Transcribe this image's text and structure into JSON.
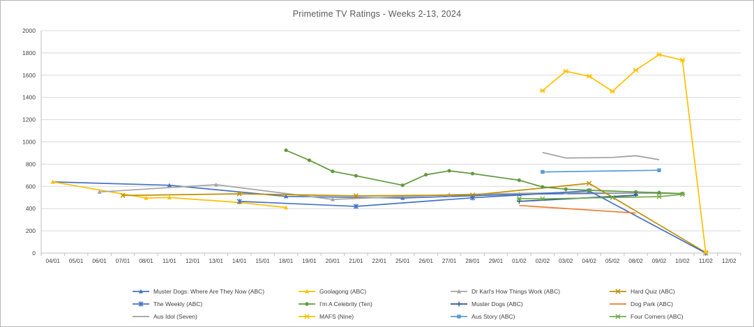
{
  "title": "Primetime TV Ratings - Weeks 2-13, 2024",
  "chart_data": {
    "type": "line",
    "title": "Primetime TV Ratings - Weeks 2-13, 2024",
    "xlabel": "",
    "ylabel": "",
    "ylim": [
      0,
      2000
    ],
    "y_tick_step": 200,
    "grid": true,
    "legend_position": "bottom",
    "axis_color": "#bfbfbf",
    "grid_color": "#d9d9d9",
    "tick_label_color": "#404040",
    "categories": [
      "04/01",
      "05/01",
      "06/01",
      "07/01",
      "08/01",
      "11/01",
      "12/01",
      "13/01",
      "14/01",
      "15/01",
      "18/01",
      "19/01",
      "20/01",
      "21/01",
      "22/01",
      "25/01",
      "26/01",
      "27/01",
      "28/01",
      "29/01",
      "01/02",
      "02/02",
      "03/02",
      "04/02",
      "05/02",
      "08/02",
      "09/02",
      "10/02",
      "11/02",
      "12/02"
    ],
    "series": [
      {
        "name": "Muster Dogs: Where Are They Now (ABC)",
        "color": "#4472c4",
        "marker": "triangle",
        "points": {
          "04/01": 640,
          "11/01": 610,
          "18/01": 510,
          "25/01": 495,
          "01/02": 530,
          "08/02": 540,
          "09/02": 545
        }
      },
      {
        "name": "Goolagong (ABC)",
        "color": "#ffc000",
        "marker": "triangle",
        "points": {
          "04/01": 640,
          "08/01": 495,
          "11/01": 500,
          "14/01": 455,
          "18/01": 410
        }
      },
      {
        "name": "Dr Karl's How Things Work (ABC)",
        "color": "#a5a5a5",
        "marker": "triangle",
        "points": {
          "06/01": 550,
          "13/01": 615,
          "20/01": 483,
          "27/01": 525,
          "03/02": 545,
          "10/02": 535
        }
      },
      {
        "name": "Hard Quiz (ABC)",
        "color": "#bf8f00",
        "marker": "x",
        "points": {
          "07/01": 518,
          "14/01": 533,
          "21/01": 515,
          "28/01": 522,
          "04/02": 627,
          "11/02": 5
        }
      },
      {
        "name": "The Weekly (ABC)",
        "color": "#4472c4",
        "marker": "asterisk",
        "points": {
          "14/01": 465,
          "21/01": 420,
          "28/01": 497,
          "04/02": 560,
          "11/02": 0
        }
      },
      {
        "name": "I'm A Celebrity (Ten)",
        "color": "#61993b",
        "marker": "circle",
        "points": {
          "18/01": 925,
          "19/01": 835,
          "20/01": 735,
          "21/01": 695,
          "25/01": 610,
          "26/01": 705,
          "27/01": 740,
          "28/01": 715,
          "01/02": 655,
          "02/02": 595,
          "03/02": 575,
          "04/02": 565,
          "08/02": 550,
          "09/02": 543,
          "10/02": 535
        }
      },
      {
        "name": "Muster Dogs (ABC)",
        "color": "#2f5597",
        "marker": "plus",
        "points": {
          "01/02": 465,
          "08/02": 520
        }
      },
      {
        "name": "Dog Park (ABC)",
        "color": "#ed7d31",
        "marker": "none",
        "points": {
          "01/02": 428,
          "08/02": 360
        }
      },
      {
        "name": "Aus Idol (Seven)",
        "color": "#9e9e9e",
        "marker": "none",
        "points": {
          "02/02": 905,
          "03/02": 855,
          "04/02": 857,
          "05/02": 860,
          "08/02": 875,
          "09/02": 840
        }
      },
      {
        "name": "MAFS (Nine)",
        "color": "#ffc000",
        "marker": "star",
        "points": {
          "02/02": 1460,
          "03/02": 1635,
          "04/02": 1590,
          "05/02": 1455,
          "08/02": 1645,
          "09/02": 1785,
          "10/02": 1735,
          "11/02": 5
        }
      },
      {
        "name": "Aus Story (ABC)",
        "color": "#5b9bd5",
        "marker": "square",
        "points": {
          "02/02": 730,
          "09/02": 745
        }
      },
      {
        "name": "Four Corners (ABC)",
        "color": "#70ad47",
        "marker": "star",
        "points": {
          "01/02": 490,
          "02/02": 488,
          "05/02": 500,
          "09/02": 508,
          "10/02": 528
        }
      }
    ],
    "legend_order": [
      0,
      1,
      2,
      3,
      4,
      5,
      6,
      7,
      8,
      9,
      10,
      11
    ]
  }
}
